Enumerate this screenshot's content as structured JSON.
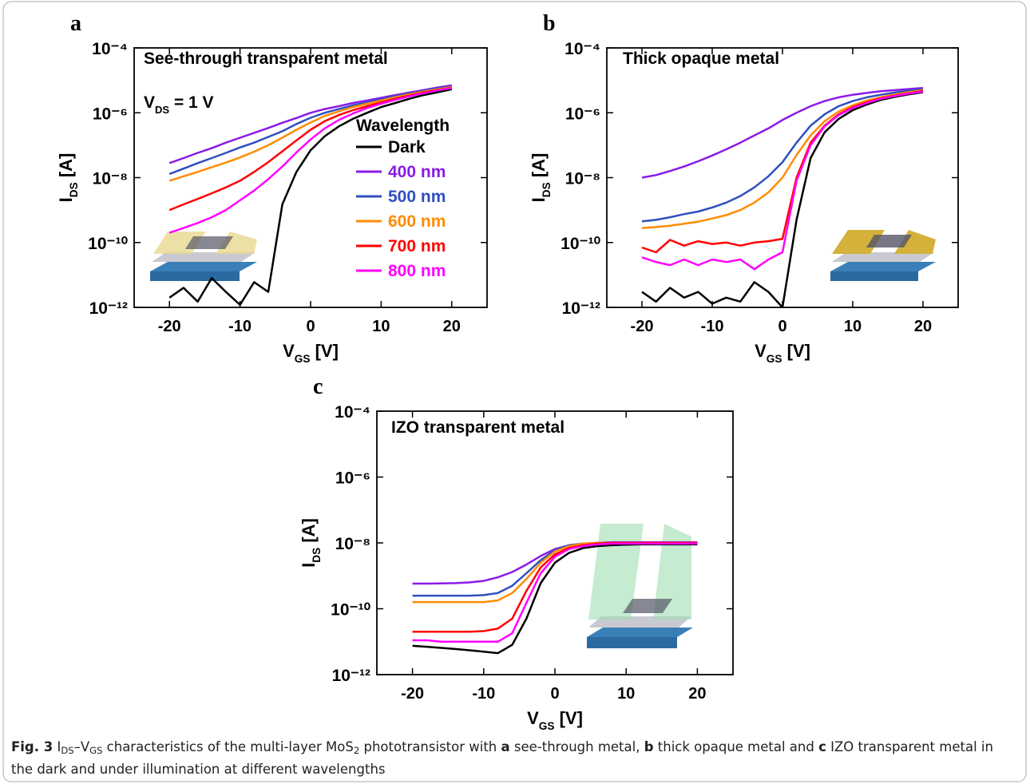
{
  "chart_data": [
    {
      "type": "line",
      "panel": "a",
      "annotations": [
        [
          {
            "text": "See-through transparent metal"
          }
        ],
        [
          {
            "text": "V"
          },
          {
            "text": "DS",
            "sub": true
          },
          {
            "text": " =  1 V"
          }
        ]
      ],
      "xlabel": [
        {
          "text": "V"
        },
        {
          "text": "GS",
          "sub": true
        },
        {
          "text": " [V]"
        }
      ],
      "ylabel": [
        {
          "text": "I"
        },
        {
          "text": "DS",
          "sub": true
        },
        {
          "text": " [A]"
        }
      ],
      "xlim": [
        -25,
        25
      ],
      "xticks": [
        -20,
        -10,
        0,
        10,
        20
      ],
      "ylim": [
        1e-12,
        0.0001
      ],
      "log": true,
      "yticks": [
        {
          "value": 1e-12,
          "label": "10⁻¹²"
        },
        {
          "value": 1e-10,
          "label": "10⁻¹⁰"
        },
        {
          "value": 1e-08,
          "label": "10⁻⁸"
        },
        {
          "value": 1e-06,
          "label": "10⁻⁶"
        },
        {
          "value": 0.0001,
          "label": "10⁻⁴"
        }
      ],
      "legend": true,
      "legend_title": "Wavelength",
      "x": [
        -20,
        -18,
        -16,
        -14,
        -12,
        -10,
        -8,
        -6,
        -4,
        -2,
        0,
        2,
        4,
        6,
        8,
        10,
        12,
        14,
        16,
        18,
        20
      ],
      "series": [
        {
          "name": "Dark",
          "color": "#000000",
          "values": [
            2e-12,
            4e-12,
            1.5e-12,
            8e-12,
            3e-12,
            1.2e-12,
            6e-12,
            3e-12,
            1.5e-09,
            1.5e-08,
            7e-08,
            1.9e-07,
            3.8e-07,
            6.5e-07,
            1e-06,
            1.5e-06,
            2e-06,
            2.7e-06,
            3.5e-06,
            4.3e-06,
            5.3e-06
          ]
        },
        {
          "name": "400 nm",
          "color": "#8b1ae8",
          "values": [
            2.8e-08,
            4e-08,
            5.8e-08,
            8.1e-08,
            1.2e-07,
            1.7e-07,
            2.4e-07,
            3.4e-07,
            4.9e-07,
            6.9e-07,
            1e-06,
            1.3e-06,
            1.6e-06,
            2e-06,
            2.4e-06,
            2.9e-06,
            3.5e-06,
            4.2e-06,
            5e-06,
            6e-06,
            7e-06
          ]
        },
        {
          "name": "500 nm",
          "color": "#2f4fbf",
          "values": [
            1.3e-08,
            1.9e-08,
            2.8e-08,
            4e-08,
            5.8e-08,
            8.5e-08,
            1.2e-07,
            1.8e-07,
            2.7e-07,
            4.5e-07,
            7e-07,
            1e-06,
            1.3e-06,
            1.7e-06,
            2.1e-06,
            2.6e-06,
            3.2e-06,
            3.9e-06,
            4.7e-06,
            5.6e-06,
            6.5e-06
          ]
        },
        {
          "name": "600 nm",
          "color": "#ff8c00",
          "values": [
            8e-09,
            1.1e-08,
            1.5e-08,
            2.1e-08,
            2.9e-08,
            4.2e-08,
            6.3e-08,
            1e-07,
            1.7e-07,
            3e-07,
            5e-07,
            8e-07,
            1.1e-06,
            1.5e-06,
            1.9e-06,
            2.4e-06,
            3e-06,
            3.7e-06,
            4.5e-06,
            5.3e-06,
            6.2e-06
          ]
        },
        {
          "name": "700 nm",
          "color": "#ff0000",
          "values": [
            1e-09,
            1.5e-09,
            2.2e-09,
            3.3e-09,
            5e-09,
            8e-09,
            1.5e-08,
            3e-08,
            6.5e-08,
            1.4e-07,
            3e-07,
            5.5e-07,
            8.5e-07,
            1.2e-06,
            1.6e-06,
            2.1e-06,
            2.7e-06,
            3.4e-06,
            4.2e-06,
            5e-06,
            5.9e-06
          ]
        },
        {
          "name": "800 nm",
          "color": "#ff00ff",
          "values": [
            2e-10,
            2.8e-10,
            4e-10,
            6e-10,
            1e-09,
            2e-09,
            4e-09,
            9e-09,
            2.2e-08,
            6e-08,
            1.5e-07,
            3.3e-07,
            6e-07,
            9.5e-07,
            1.4e-06,
            1.9e-06,
            2.5e-06,
            3.2e-06,
            4e-06,
            4.9e-06,
            5.8e-06
          ]
        }
      ]
    },
    {
      "type": "line",
      "panel": "b",
      "annotations": [
        [
          {
            "text": "Thick opaque metal"
          }
        ]
      ],
      "xlabel": [
        {
          "text": "V"
        },
        {
          "text": "GS",
          "sub": true
        },
        {
          "text": " [V]"
        }
      ],
      "ylabel": [
        {
          "text": "I"
        },
        {
          "text": "DS",
          "sub": true
        },
        {
          "text": " [A]"
        }
      ],
      "xlim": [
        -25,
        25
      ],
      "xticks": [
        -20,
        -10,
        0,
        10,
        20
      ],
      "ylim": [
        1e-12,
        0.0001
      ],
      "log": true,
      "yticks": [
        {
          "value": 1e-12,
          "label": "10⁻¹²"
        },
        {
          "value": 1e-10,
          "label": "10⁻¹⁰"
        },
        {
          "value": 1e-08,
          "label": "10⁻⁸"
        },
        {
          "value": 1e-06,
          "label": "10⁻⁶"
        },
        {
          "value": 0.0001,
          "label": "10⁻⁴"
        }
      ],
      "legend": false,
      "x": [
        -20,
        -18,
        -16,
        -14,
        -12,
        -10,
        -8,
        -6,
        -4,
        -2,
        0,
        2,
        4,
        6,
        8,
        10,
        12,
        14,
        16,
        18,
        20
      ],
      "series": [
        {
          "name": "Dark",
          "color": "#000000",
          "values": [
            3e-12,
            1.5e-12,
            4e-12,
            2e-12,
            3e-12,
            1.3e-12,
            2e-12,
            1.5e-12,
            6e-12,
            3e-12,
            1e-12,
            5e-10,
            4e-08,
            2.5e-07,
            6.5e-07,
            1.2e-06,
            1.8e-06,
            2.5e-06,
            3.1e-06,
            3.7e-06,
            4.3e-06
          ]
        },
        {
          "name": "400 nm",
          "color": "#8b1ae8",
          "values": [
            1e-08,
            1.2e-08,
            1.6e-08,
            2.2e-08,
            3.2e-08,
            4.8e-08,
            7.5e-08,
            1.2e-07,
            2e-07,
            3.3e-07,
            6e-07,
            1e-06,
            1.6e-06,
            2.3e-06,
            3e-06,
            3.6e-06,
            4.1e-06,
            4.6e-06,
            5e-06,
            5.4e-06,
            5.8e-06
          ]
        },
        {
          "name": "500 nm",
          "color": "#2f4fbf",
          "values": [
            4.5e-10,
            5e-10,
            6e-10,
            7.5e-10,
            9e-10,
            1.2e-09,
            1.7e-09,
            2.7e-09,
            5e-09,
            1.1e-08,
            3e-08,
            1.2e-07,
            4e-07,
            9e-07,
            1.6e-06,
            2.3e-06,
            3e-06,
            3.6e-06,
            4.2e-06,
            4.8e-06,
            5.4e-06
          ]
        },
        {
          "name": "600 nm",
          "color": "#ff8c00",
          "values": [
            2.8e-10,
            3e-10,
            3.3e-10,
            3.8e-10,
            4.4e-10,
            5.5e-10,
            7e-10,
            1e-09,
            1.7e-09,
            3.5e-09,
            1e-08,
            5e-08,
            2e-07,
            5.5e-07,
            1.1e-06,
            1.7e-06,
            2.4e-06,
            3e-06,
            3.7e-06,
            4.3e-06,
            5e-06
          ]
        },
        {
          "name": "700 nm",
          "color": "#ff0000",
          "values": [
            7e-11,
            5e-11,
            1.2e-10,
            8e-11,
            1.1e-10,
            9e-11,
            1e-10,
            8e-11,
            1e-10,
            1.1e-10,
            1.3e-10,
            1e-08,
            1.2e-07,
            4e-07,
            9e-07,
            1.5e-06,
            2.1e-06,
            2.8e-06,
            3.4e-06,
            4e-06,
            4.7e-06
          ]
        },
        {
          "name": "800 nm",
          "color": "#ff00ff",
          "values": [
            3.5e-11,
            2.5e-11,
            2e-11,
            3e-11,
            2e-11,
            3e-11,
            2.5e-11,
            3e-11,
            1.5e-11,
            3e-11,
            5e-11,
            8e-09,
            1e-07,
            3.8e-07,
            8.5e-07,
            1.4e-06,
            2e-06,
            2.7e-06,
            3.3e-06,
            3.9e-06,
            4.5e-06
          ]
        }
      ]
    },
    {
      "type": "line",
      "panel": "c",
      "annotations": [
        [
          {
            "text": "IZO transparent metal"
          }
        ]
      ],
      "xlabel": [
        {
          "text": "V"
        },
        {
          "text": "GS",
          "sub": true
        },
        {
          "text": " [V]"
        }
      ],
      "ylabel": [
        {
          "text": "I"
        },
        {
          "text": "DS",
          "sub": true
        },
        {
          "text": " [A]"
        }
      ],
      "xlim": [
        -25,
        25
      ],
      "xticks": [
        -20,
        -10,
        0,
        10,
        20
      ],
      "ylim": [
        1e-12,
        0.0001
      ],
      "log": true,
      "yticks": [
        {
          "value": 1e-12,
          "label": "10⁻¹²"
        },
        {
          "value": 1e-10,
          "label": "10⁻¹⁰"
        },
        {
          "value": 1e-08,
          "label": "10⁻⁸"
        },
        {
          "value": 1e-06,
          "label": "10⁻⁶"
        },
        {
          "value": 0.0001,
          "label": "10⁻⁴"
        }
      ],
      "legend": false,
      "x": [
        -20,
        -18,
        -16,
        -14,
        -12,
        -10,
        -8,
        -6,
        -4,
        -2,
        0,
        2,
        4,
        6,
        8,
        10,
        12,
        14,
        16,
        18,
        20
      ],
      "series": [
        {
          "name": "Dark",
          "color": "#000000",
          "values": [
            7.5e-12,
            7e-12,
            6.5e-12,
            6e-12,
            5.5e-12,
            5e-12,
            4.5e-12,
            8e-12,
            5e-11,
            6e-10,
            2.5e-09,
            5e-09,
            7e-09,
            8e-09,
            8.5e-09,
            8.8e-09,
            9e-09,
            9e-09,
            9e-09,
            9e-09,
            9e-09
          ]
        },
        {
          "name": "400 nm",
          "color": "#8b1ae8",
          "values": [
            5.8e-10,
            5.8e-10,
            5.9e-10,
            6e-10,
            6.3e-10,
            7e-10,
            9e-10,
            1.3e-09,
            2.2e-09,
            4e-09,
            6.5e-09,
            8.5e-09,
            9.5e-09,
            1e-08,
            1.05e-08,
            1.05e-08,
            1.05e-08,
            1.05e-08,
            1.05e-08,
            1.05e-08,
            1.05e-08
          ]
        },
        {
          "name": "500 nm",
          "color": "#2f4fbf",
          "values": [
            2.5e-10,
            2.5e-10,
            2.5e-10,
            2.5e-10,
            2.5e-10,
            2.6e-10,
            3e-10,
            5e-10,
            1.2e-09,
            3e-09,
            6e-09,
            8.5e-09,
            9.5e-09,
            1e-08,
            1e-08,
            1e-08,
            1e-08,
            1e-08,
            1e-08,
            1e-08,
            1e-08
          ]
        },
        {
          "name": "600 nm",
          "color": "#ff8c00",
          "values": [
            1.6e-10,
            1.6e-10,
            1.6e-10,
            1.6e-10,
            1.6e-10,
            1.6e-10,
            1.8e-10,
            3e-10,
            8e-10,
            2.5e-09,
            5.5e-09,
            8e-09,
            9.5e-09,
            1e-08,
            1e-08,
            1e-08,
            1e-08,
            1e-08,
            1e-08,
            1e-08,
            1e-08
          ]
        },
        {
          "name": "700 nm",
          "color": "#ff0000",
          "values": [
            2e-11,
            2e-11,
            2e-11,
            2e-11,
            2e-11,
            2.1e-11,
            2.5e-11,
            5e-11,
            3.5e-10,
            1.8e-09,
            4.5e-09,
            7e-09,
            8.5e-09,
            9.5e-09,
            1e-08,
            1e-08,
            1e-08,
            1e-08,
            1e-08,
            1e-08,
            1e-08
          ]
        },
        {
          "name": "800 nm",
          "color": "#ff00ff",
          "values": [
            1.1e-11,
            1.1e-11,
            1e-11,
            1e-11,
            1e-11,
            1e-11,
            1e-11,
            1.8e-11,
            1.5e-10,
            1.2e-09,
            3.8e-09,
            6.5e-09,
            8e-09,
            9e-09,
            9.5e-09,
            9.5e-09,
            9.5e-09,
            9.5e-09,
            9.5e-09,
            9.5e-09,
            9.5e-09
          ]
        }
      ]
    }
  ],
  "caption": [
    {
      "text": "Fig. 3",
      "bold": true
    },
    {
      "text": "  I"
    },
    {
      "text": "DS",
      "sub": true
    },
    {
      "text": "–V"
    },
    {
      "text": "GS",
      "sub": true
    },
    {
      "text": " characteristics of the multi-layer MoS"
    },
    {
      "text": "2",
      "sub": true
    },
    {
      "text": " phototransistor with "
    },
    {
      "text": "a",
      "bold": true
    },
    {
      "text": " see-through metal, "
    },
    {
      "text": "b",
      "bold": true
    },
    {
      "text": " thick opaque metal and "
    },
    {
      "text": "c",
      "bold": true
    },
    {
      "text": " IZO transparent metal in the dark and under illumination at different wavelengths"
    }
  ]
}
